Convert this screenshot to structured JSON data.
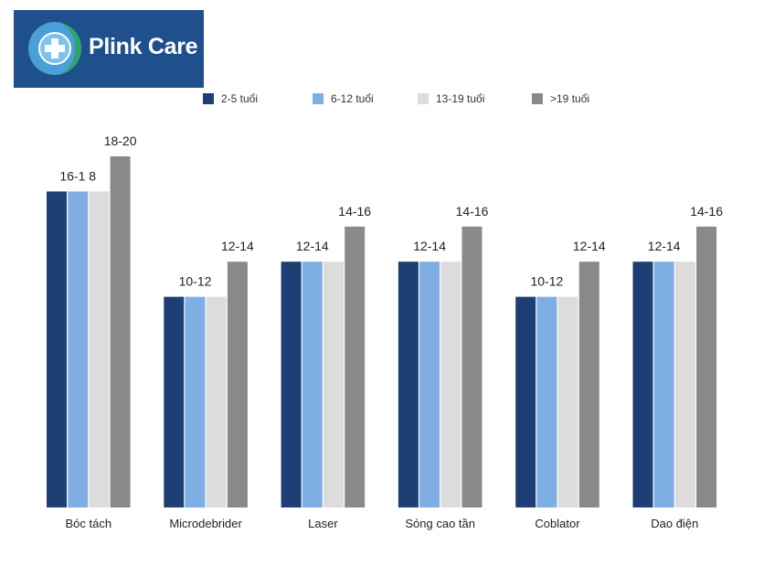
{
  "logo": {
    "brand_name": "Plink Care",
    "icon": "medical-cross-globe-icon",
    "background_color": "#1f4f8d"
  },
  "chart_data": {
    "type": "bar",
    "title": "",
    "xlabel": "",
    "ylabel": "",
    "ylim": [
      0,
      20
    ],
    "categories": [
      "Bóc tách",
      "Microdebrider",
      "Laser",
      "Sóng cao tần",
      "Coblator",
      "Dao điện"
    ],
    "series": [
      {
        "name": "2-5 tuổi",
        "color": "#1d3f74",
        "values": [
          18,
          12,
          14,
          14,
          12,
          14
        ]
      },
      {
        "name": "6-12 tuổi",
        "color": "#7eaee3",
        "values": [
          18,
          12,
          14,
          14,
          12,
          14
        ]
      },
      {
        "name": "13-19 tuổi",
        "color": "#dddbdb",
        "values": [
          18,
          12,
          14,
          14,
          12,
          14
        ]
      },
      {
        "name": ">19 tuổi",
        "color": "#898989",
        "values": [
          20,
          14,
          16,
          16,
          14,
          16
        ]
      }
    ],
    "data_labels": [
      {
        "category": "Bóc tách",
        "lower_group": "16-1 8",
        "upper_bar": "18-20"
      },
      {
        "category": "Microdebrider",
        "lower_group": "10-12",
        "upper_bar": "12-14"
      },
      {
        "category": "Laser",
        "lower_group": "12-14",
        "upper_bar": "14-16"
      },
      {
        "category": "Sóng cao tần",
        "lower_group": "12-14",
        "upper_bar": "14-16"
      },
      {
        "category": "Coblator",
        "lower_group": "10-12",
        "upper_bar": "12-14"
      },
      {
        "category": "Dao điện",
        "lower_group": "12-14",
        "upper_bar": "14-16"
      }
    ],
    "legend_position": "top",
    "grid": false
  }
}
